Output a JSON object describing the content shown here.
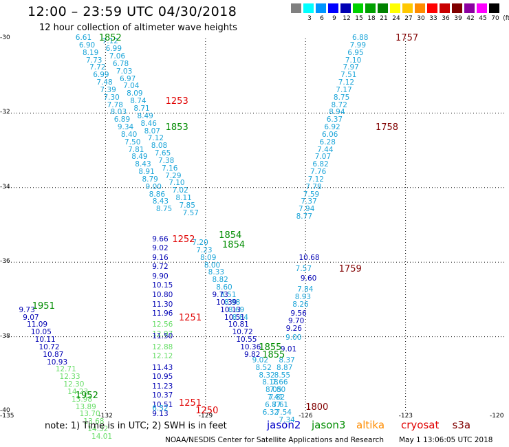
{
  "header": {
    "title": "12:00  –  23:59 UTC 04/30/2018",
    "subtitle": "12 hour collection of altimeter wave heights"
  },
  "legend": {
    "colors": [
      "#808080",
      "#00ffff",
      "#0096ff",
      "#0000ff",
      "#0000b4",
      "#00d200",
      "#00a000",
      "#008200",
      "#ffff00",
      "#ffc800",
      "#ff8c00",
      "#ff0000",
      "#c80000",
      "#800000",
      "#8c00a0",
      "#ff00ff",
      "#000000"
    ],
    "labels": [
      "3",
      "6",
      "9",
      "12",
      "15",
      "18",
      "21",
      "24",
      "27",
      "30",
      "33",
      "36",
      "39",
      "42",
      "45",
      "70",
      "(ft)"
    ]
  },
  "footer": {
    "note": "note:  1) Time is in UTC; 2) SWH is in feet",
    "satellites": [
      {
        "name": "jason2",
        "color": "#0000c8"
      },
      {
        "name": "jason3",
        "color": "#008c00"
      },
      {
        "name": "altika",
        "color": "#ff8c00"
      },
      {
        "name": "cryosat",
        "color": "#e00000"
      },
      {
        "name": "s3a",
        "color": "#800000"
      }
    ],
    "credit": "NOAA/NESDIS Center for Satellite Applications and Research",
    "timestamp": "May  1 13:06:05 UTC 2018"
  },
  "axes": {
    "lat_labels": [
      "-30",
      "-32",
      "-34",
      "-36",
      "-38",
      "-40"
    ],
    "lon_labels": [
      "-135",
      "-132",
      "-129",
      "-126",
      "-123",
      "-120"
    ]
  },
  "map": {
    "type": "map",
    "lon_range": [
      -135,
      -120
    ],
    "lat_range": [
      -30,
      -40
    ],
    "color_key": {
      "light_cyan": "#1aa4d8",
      "dark_blue": "#0000b4",
      "light_green": "#66dd66",
      "jason3": "#008c00",
      "cryosat": "#e00000",
      "s3a": "#800000"
    },
    "time_labels": [
      {
        "text": "1852",
        "lon": -132.2,
        "lat": -30.0,
        "c": "#008c00"
      },
      {
        "text": "1253",
        "lon": -130.2,
        "lat": -31.7,
        "c": "#e00000"
      },
      {
        "text": "1853",
        "lon": -130.2,
        "lat": -32.4,
        "c": "#008c00"
      },
      {
        "text": "1854",
        "lon": -128.6,
        "lat": -35.3,
        "c": "#008c00"
      },
      {
        "text": "1854",
        "lon": -128.5,
        "lat": -35.55,
        "c": "#008c00"
      },
      {
        "text": "1252",
        "lon": -130.0,
        "lat": -35.4,
        "c": "#e00000"
      },
      {
        "text": "1251",
        "lon": -129.8,
        "lat": -37.5,
        "c": "#e00000"
      },
      {
        "text": "1251",
        "lon": -129.8,
        "lat": -39.8,
        "c": "#e00000"
      },
      {
        "text": "1250",
        "lon": -129.3,
        "lat": -40.0,
        "c": "#e00000"
      },
      {
        "text": "1951",
        "lon": -134.2,
        "lat": -37.2,
        "c": "#008c00"
      },
      {
        "text": "1952",
        "lon": -132.9,
        "lat": -39.6,
        "c": "#008c00"
      },
      {
        "text": "1855",
        "lon": -127.4,
        "lat": -38.3,
        "c": "#008c00"
      },
      {
        "text": "1855",
        "lon": -127.3,
        "lat": -38.5,
        "c": "#008c00"
      },
      {
        "text": "1800",
        "lon": -126.0,
        "lat": -39.9,
        "c": "#800000"
      },
      {
        "text": "1757",
        "lon": -123.3,
        "lat": -30.0,
        "c": "#800000"
      },
      {
        "text": "1758",
        "lon": -123.9,
        "lat": -32.4,
        "c": "#800000"
      },
      {
        "text": "1759",
        "lon": -125.0,
        "lat": -36.2,
        "c": "#800000"
      }
    ],
    "tracks": [
      {
        "name": "track-a",
        "lon0": -132.9,
        "lat0": -30.0,
        "dlon": 0.105,
        "dlat": -0.2,
        "c": "#1aa4d8",
        "values": [
          "6.61",
          "6.90",
          "8.19",
          "7.73",
          "7.72",
          "6.99",
          "7.48",
          "7.39",
          "7.30",
          "7.78",
          "8.03",
          "6.89",
          "9.34",
          "8.40",
          "7.50",
          "7.81",
          "8.49",
          "8.43",
          "8.91",
          "8.79",
          "9.00",
          "8.86",
          "8.43",
          "8.75"
        ]
      },
      {
        "name": "track-a2",
        "lon0": -132.1,
        "lat0": -30.1,
        "dlon": 0.105,
        "dlat": -0.2,
        "c": "#1aa4d8",
        "values": [
          "7.12",
          "6.99",
          "7.06",
          "6.78",
          "7.03",
          "6.97",
          "7.04",
          "8.09",
          "8.74",
          "8.71",
          "8.49",
          "8.46",
          "8.07",
          "7.12",
          "8.08",
          "7.65",
          "7.38",
          "7.16",
          "7.29",
          "7.10",
          "7.02",
          "8.11",
          "7.85",
          "7.57"
        ]
      },
      {
        "name": "track-b",
        "lon0": -130.6,
        "lat0": -35.4,
        "dlon": 0.0,
        "dlat": -0.25,
        "c": "#0000b4",
        "values": [
          "9.66",
          "9.02",
          "9.16",
          "9.72",
          "9.90",
          "10.15",
          "10.80",
          "11.30",
          "11.96"
        ]
      },
      {
        "name": "track-b2",
        "lon0": -130.6,
        "lat0": -37.7,
        "dlon": 0.0,
        "dlat": -0.25,
        "c": "#66dd66",
        "values": [
          "12.56",
          "12.97"
        ]
      },
      {
        "name": "track-b3",
        "lon0": -130.6,
        "lat0": -38.0,
        "dlon": 0.0,
        "dlat": -0.25,
        "c": "#0000b4",
        "values": [
          "11.50"
        ]
      },
      {
        "name": "track-b4",
        "lon0": -130.6,
        "lat0": -38.3,
        "dlon": 0.0,
        "dlat": -0.25,
        "c": "#66dd66",
        "values": [
          "12.88",
          "12.12"
        ]
      },
      {
        "name": "track-b5",
        "lon0": -130.6,
        "lat0": -38.85,
        "dlon": 0.0,
        "dlat": -0.25,
        "c": "#0000b4",
        "values": [
          "11.43",
          "10.95",
          "11.23",
          "10.37",
          "10.51",
          "9.13"
        ]
      },
      {
        "name": "track-b6",
        "lon0": -130.6,
        "lat0": -39.95,
        "dlon": 0.0,
        "dlat": -0.25,
        "c": "#1aa4d8",
        "values": [
          "6.52"
        ]
      },
      {
        "name": "track-c",
        "lon0": -134.6,
        "lat0": -37.3,
        "dlon": 0.12,
        "dlat": -0.2,
        "c": "#0000b4",
        "values": [
          "9.73",
          "9.07",
          "11.09",
          "10.05",
          "10.11",
          "10.72",
          "10.87",
          "10.93"
        ]
      },
      {
        "name": "track-c2",
        "lon0": -133.5,
        "lat0": -38.9,
        "dlon": 0.12,
        "dlat": -0.2,
        "c": "#66dd66",
        "values": [
          "12.71",
          "12.33",
          "12.30",
          "14.23",
          "13.98",
          "13.89",
          "13.70",
          "13.68",
          "14.32",
          "14.01"
        ]
      },
      {
        "name": "track-d",
        "lon0": -129.4,
        "lat0": -35.5,
        "dlon": 0.12,
        "dlat": -0.2,
        "c": "#1aa4d8",
        "values": [
          "7.20",
          "7.23",
          "8.09",
          "8.00",
          "8.33",
          "8.82",
          "8.60",
          "8.51",
          "8.98",
          "8.69",
          "8.84"
        ]
      },
      {
        "name": "track-d2",
        "lon0": -128.8,
        "lat0": -36.9,
        "dlon": 0.12,
        "dlat": -0.2,
        "c": "#0000b4",
        "values": [
          "9.73",
          "10.39",
          "10.13",
          "10.51",
          "10.81",
          "10.72",
          "10.55",
          "10.36",
          "9.82"
        ]
      },
      {
        "name": "track-d3",
        "lon0": -127.6,
        "lat0": -38.65,
        "dlon": 0.1,
        "dlat": -0.2,
        "c": "#1aa4d8",
        "values": [
          "9.02",
          "8.52",
          "8.32",
          "8.18",
          "8.05",
          "7.82",
          "7.61",
          "7.54",
          "7.34"
        ]
      },
      {
        "name": "track-e",
        "lon0": -124.6,
        "lat0": -30.0,
        "dlon": -0.07,
        "dlat": -0.2,
        "c": "#1aa4d8",
        "values": [
          "6.88",
          "7.99",
          "6.95",
          "7.10",
          "7.97",
          "7.51",
          "7.12",
          "7.17",
          "8.75",
          "8.72",
          "8.94",
          "6.37",
          "6.92",
          "6.06",
          "6.28",
          "7.44",
          "7.07",
          "6.82",
          "7.76",
          "7.12",
          "7.78",
          "7.59",
          "7.37",
          "7.94",
          "8.77"
        ]
      },
      {
        "name": "track-e2",
        "lon0": -126.2,
        "lat0": -35.9,
        "dlon": -0.07,
        "dlat": -0.2,
        "c": "#0000b4",
        "values": [
          "10.68"
        ]
      },
      {
        "name": "track-e3",
        "lon0": -126.3,
        "lat0": -36.2,
        "dlon": -0.07,
        "dlat": -0.2,
        "c": "#1aa4d8",
        "values": [
          "7.57"
        ]
      },
      {
        "name": "track-e4",
        "lon0": -126.15,
        "lat0": -36.45,
        "dlon": -0.07,
        "dlat": -0.2,
        "c": "#0000b4",
        "values": [
          "9.60"
        ]
      },
      {
        "name": "track-e5",
        "lon0": -126.25,
        "lat0": -36.75,
        "dlon": -0.07,
        "dlat": -0.2,
        "c": "#1aa4d8",
        "values": [
          "7.84",
          "8.93",
          "8.26"
        ]
      },
      {
        "name": "track-e6",
        "lon0": -126.45,
        "lat0": -37.4,
        "dlon": -0.07,
        "dlat": -0.2,
        "c": "#0000b4",
        "values": [
          "9.56",
          "9.70",
          "9.26"
        ]
      },
      {
        "name": "track-e7",
        "lon0": -126.6,
        "lat0": -38.05,
        "dlon": -0.07,
        "dlat": -0.2,
        "c": "#1aa4d8",
        "values": [
          "9.00"
        ]
      },
      {
        "name": "track-e8",
        "lon0": -126.75,
        "lat0": -38.35,
        "dlon": -0.07,
        "dlat": -0.2,
        "c": "#0000b4",
        "values": [
          "9.01"
        ]
      },
      {
        "name": "track-e9",
        "lon0": -126.8,
        "lat0": -38.65,
        "dlon": -0.07,
        "dlat": -0.2,
        "c": "#1aa4d8",
        "values": [
          "8.37",
          "8.87",
          "8.55",
          "7.66",
          "7.80",
          "7.41",
          "6.87",
          "6.32"
        ]
      }
    ]
  }
}
